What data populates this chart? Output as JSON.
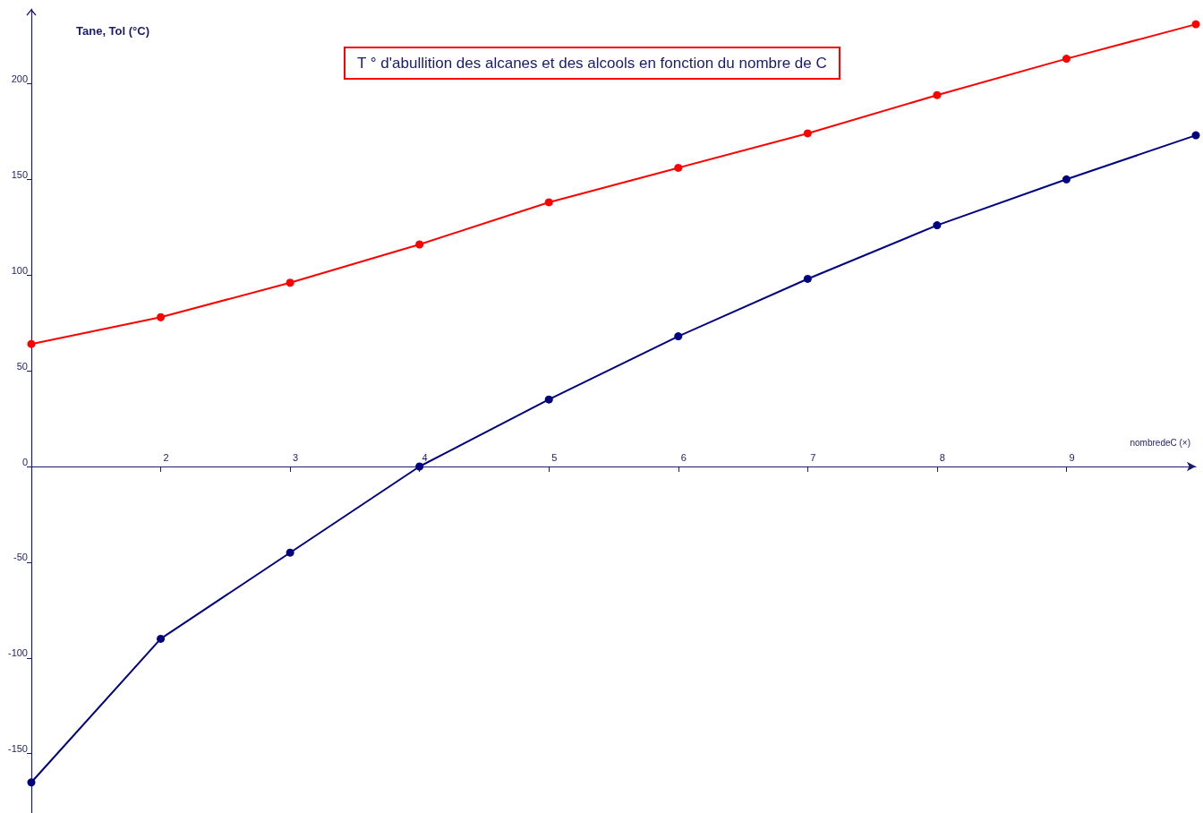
{
  "chart_data": {
    "type": "line",
    "title": "T ° d'abullition des alcanes et des alcools en fonction du nombre de C",
    "xlabel": "nombredeC (×)",
    "ylabel": "Tane, Tol (°C)",
    "x": [
      1,
      2,
      3,
      4,
      5,
      6,
      7,
      8,
      9,
      10
    ],
    "series": [
      {
        "color": "#ff0000",
        "values": [
          64,
          78,
          96,
          116,
          138,
          156,
          174,
          194,
          213,
          231
        ]
      },
      {
        "color": "#000080",
        "values": [
          -165,
          -90,
          -45,
          0,
          35,
          68,
          98,
          126,
          150,
          173
        ]
      }
    ],
    "xlim": [
      1,
      10
    ],
    "xticks": [
      2,
      3,
      4,
      5,
      6,
      7,
      8,
      9
    ],
    "ylim": [
      -181,
      239
    ],
    "yticks": [
      -150,
      -100,
      -50,
      0,
      50,
      100,
      150,
      200
    ],
    "grid": false,
    "marker": "circle",
    "line_style": "solid"
  }
}
